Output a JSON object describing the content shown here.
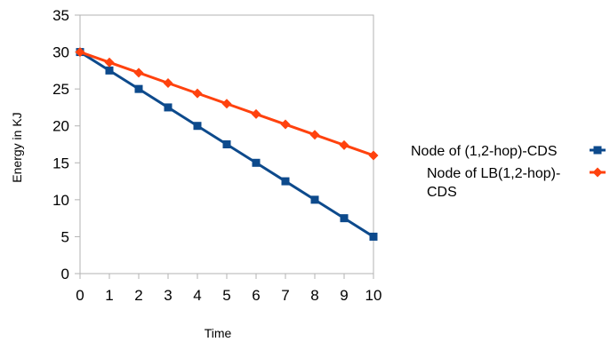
{
  "chart_data": {
    "type": "line",
    "title": "",
    "xlabel": "Time",
    "ylabel": "Energy in KJ",
    "x": [
      0,
      1,
      2,
      3,
      4,
      5,
      6,
      7,
      8,
      9,
      10
    ],
    "xlim": [
      0,
      10
    ],
    "ylim": [
      0,
      35
    ],
    "yticks": [
      0,
      5,
      10,
      15,
      20,
      25,
      30,
      35
    ],
    "xticks": [
      0,
      1,
      2,
      3,
      4,
      5,
      6,
      7,
      8,
      9,
      10
    ],
    "grid": false,
    "legend_position": "right",
    "series": [
      {
        "name": "Node of (1,2-hop)-CDS",
        "legend_lines": [
          "Node of (1,2-hop)-CDS"
        ],
        "color": "#0d4a8c",
        "marker": "square",
        "values": [
          30,
          27.5,
          25,
          22.5,
          20,
          17.5,
          15,
          12.5,
          10,
          7.5,
          5
        ]
      },
      {
        "name": "Node of LB(1,2-hop)-CDS",
        "legend_lines": [
          "Node of LB(1,2-hop)-",
          "CDS"
        ],
        "color": "#ff420e",
        "marker": "diamond",
        "values": [
          30,
          28.6,
          27.2,
          25.8,
          24.4,
          23,
          21.6,
          20.2,
          18.8,
          17.4,
          16
        ]
      }
    ]
  }
}
